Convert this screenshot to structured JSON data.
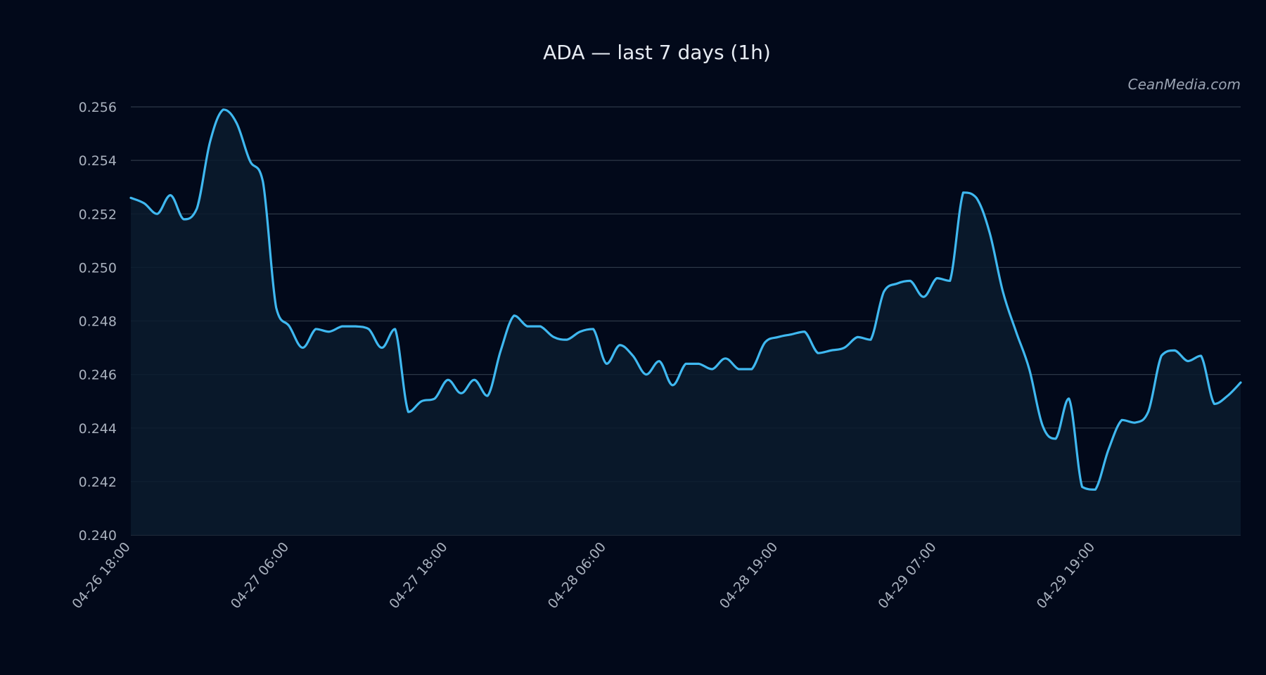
{
  "colors": {
    "background": "#02091a",
    "line": "#3fb8f0",
    "area": "#0b1b2e",
    "grid": "#2d3847",
    "text": "#e6ebf2",
    "tick_text": "#a9b1be"
  },
  "watermark": "CeanMedia.com",
  "chart_data": {
    "type": "area",
    "title": "ADA — last 7 days (1h)",
    "xlabel": "",
    "ylabel": "",
    "ylim": [
      0.24,
      0.256
    ],
    "yticks": [
      "0.256",
      "0.254",
      "0.252",
      "0.250",
      "0.248",
      "0.246",
      "0.244",
      "0.242",
      "0.240"
    ],
    "xticks": [
      "04-26 18:00",
      "04-27 06:00",
      "04-27 18:00",
      "04-28 06:00",
      "04-28 19:00",
      "04-29 07:00",
      "04-29 19:00"
    ],
    "grid": true,
    "legend": "none",
    "x_start": "04-26 18:00",
    "x_end": "04-30 07:00",
    "interval": "1h",
    "series": [
      {
        "values": [
          0.2526,
          0.2524,
          0.252,
          0.2527,
          0.2518,
          0.2522,
          0.2547,
          0.2559,
          0.2554,
          0.254,
          0.2532,
          0.2485,
          0.2478,
          0.247,
          0.2477,
          0.2476,
          0.2478,
          0.2478,
          0.2477,
          0.247,
          0.2477,
          0.2446,
          0.245,
          0.2451,
          0.2458,
          0.2453,
          0.2458,
          0.2452,
          0.2469,
          0.2482,
          0.2478,
          0.2478,
          0.2474,
          0.2473,
          0.2476,
          0.2477,
          0.2464,
          0.2471,
          0.2467,
          0.246,
          0.2465,
          0.2456,
          0.2464,
          0.2464,
          0.2462,
          0.2466,
          0.2462,
          0.2462,
          0.2472,
          0.2474,
          0.2475,
          0.2476,
          0.2468,
          0.2469,
          0.247,
          0.2474,
          0.2473,
          0.2491,
          0.2494,
          0.2495,
          0.2489,
          0.2496,
          0.2495,
          0.2528,
          0.2526,
          0.2513,
          0.2491,
          0.2476,
          0.2462,
          0.2441,
          0.2436,
          0.2451,
          0.2418,
          0.2417,
          0.2432,
          0.2443,
          0.2442,
          0.2446,
          0.2467,
          0.2469,
          0.2465,
          0.2467,
          0.2449,
          0.2452,
          0.2457
        ]
      }
    ]
  }
}
